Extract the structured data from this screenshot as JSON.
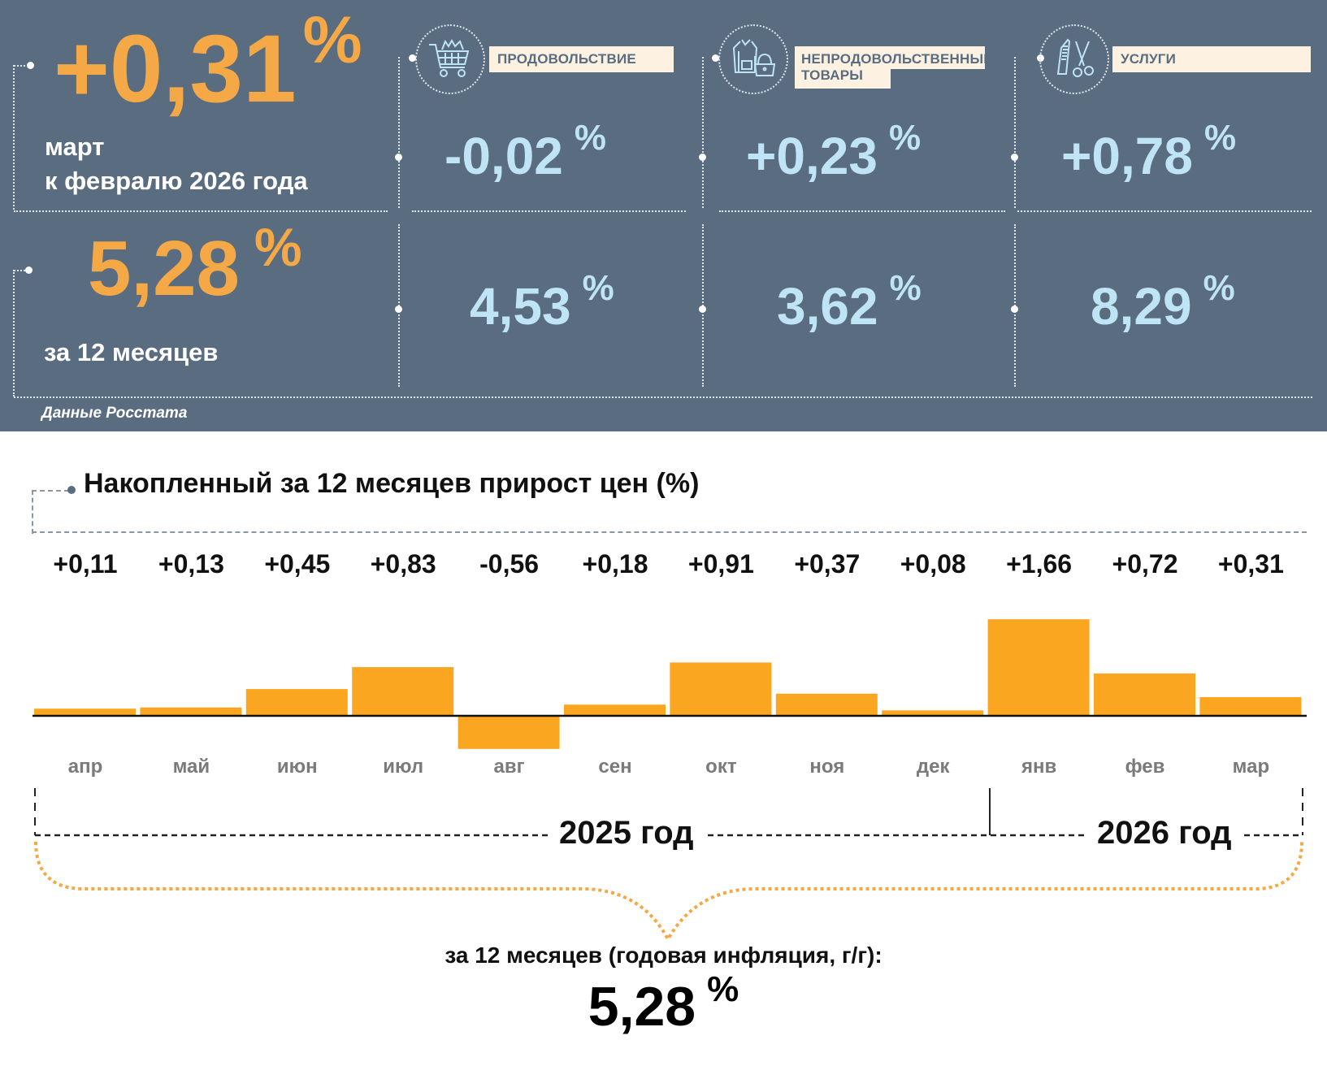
{
  "header": {
    "monthly": {
      "value": "+0,31",
      "unit": "%",
      "caption_line1": "март",
      "caption_line2": "к февралю 2026 года"
    },
    "annual": {
      "value": "5,28",
      "unit": "%",
      "caption": "за 12 месяцев"
    },
    "source": "Данные Росстата",
    "categories": [
      {
        "icon": "shopping-cart-icon",
        "label": "ПРОДОВОЛЬСТВИЕ",
        "monthly": "-0,02",
        "annual": "4,53",
        "unit": "%"
      },
      {
        "icon": "clothing-bag-icon",
        "label_line1": "НЕПРОДОВОЛЬСТВЕННЫЕ",
        "label_line2": "ТОВАРЫ",
        "monthly": "+0,23",
        "annual": "3,62",
        "unit": "%"
      },
      {
        "icon": "comb-scissors-icon",
        "label": "УСЛУГИ",
        "monthly": "+0,78",
        "annual": "8,29",
        "unit": "%"
      }
    ]
  },
  "colors": {
    "panel_bg": "#596c80",
    "accent_orange": "#f5a846",
    "bar_orange": "#fba621",
    "value_blue": "#bfe4f5",
    "label_bg": "#fdf2e2"
  },
  "chart_data": {
    "type": "bar",
    "title": "Накопленный за 12 месяцев прирост цен (%)",
    "xlabel": "",
    "ylabel": "",
    "categories": [
      "апр",
      "май",
      "июн",
      "июл",
      "авг",
      "сен",
      "окт",
      "ноя",
      "дек",
      "янв",
      "фев",
      "мар"
    ],
    "values": [
      0.11,
      0.13,
      0.45,
      0.83,
      -0.56,
      0.18,
      0.91,
      0.37,
      0.08,
      1.66,
      0.72,
      0.31
    ],
    "value_labels": [
      "+0,11",
      "+0,13",
      "+0,45",
      "+0,83",
      "-0,56",
      "+0,18",
      "+0,91",
      "+0,37",
      "+0,08",
      "+1,66",
      "+0,72",
      "+0,31"
    ],
    "ylim": [
      -0.56,
      1.66
    ],
    "grid": false,
    "year_groups": [
      {
        "label": "2025 год",
        "months": 9
      },
      {
        "label": "2026 год",
        "months": 3
      }
    ],
    "summary_label": "за 12 месяцев (годовая инфляция, г/г):",
    "summary_value": "5,28",
    "summary_unit": "%"
  }
}
